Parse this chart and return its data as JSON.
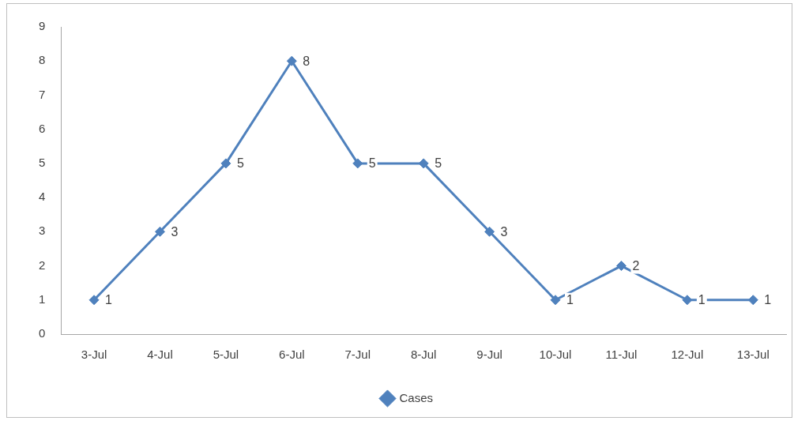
{
  "chart_data": {
    "type": "line",
    "categories": [
      "3-Jul",
      "4-Jul",
      "5-Jul",
      "6-Jul",
      "7-Jul",
      "8-Jul",
      "9-Jul",
      "10-Jul",
      "11-Jul",
      "12-Jul",
      "13-Jul"
    ],
    "series": [
      {
        "name": "Cases",
        "color": "#4f81bd",
        "values": [
          1,
          3,
          5,
          8,
          5,
          5,
          3,
          1,
          2,
          1,
          1
        ]
      }
    ],
    "ylim": [
      0,
      9
    ],
    "yticks": [
      0,
      1,
      2,
      3,
      4,
      5,
      6,
      7,
      8,
      9
    ],
    "grid": false,
    "legend": "bottom",
    "marker": "diamond",
    "line_style": "solid",
    "data_labels": true
  }
}
